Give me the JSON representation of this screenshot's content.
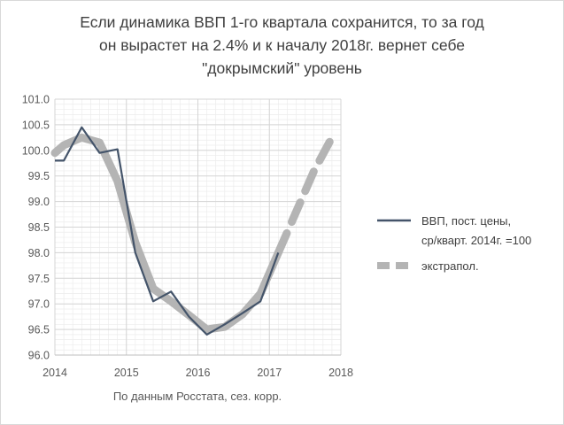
{
  "chart_data": {
    "type": "line",
    "title_lines": [
      "Если динамика ВВП 1-го квартала сохранится, то за год",
      "он вырастет на 2.4% и к началу 2018г. вернет себе",
      "\"докрымский\" уровень"
    ],
    "xlabel": "По данным Росстата, сез. корр.",
    "ylabel": "",
    "xlim": [
      2014,
      2018
    ],
    "ylim": [
      96.0,
      101.0
    ],
    "xticks": [
      "2014",
      "2015",
      "2016",
      "2017",
      "2018"
    ],
    "yticks": [
      "96.0",
      "96.5",
      "97.0",
      "97.5",
      "98.0",
      "98.5",
      "99.0",
      "99.5",
      "100.0",
      "100.5",
      "101.0"
    ],
    "grid": true,
    "legend_position": "right",
    "series": [
      {
        "name": "ВВП, пост. цены, ср/кварт. 2014г. =100",
        "name_lines": [
          "ВВП, пост. цены,",
          "ср/кварт. 2014г. =100"
        ],
        "color": "#44546a",
        "style": "solid",
        "x": [
          2014.0,
          2014.125,
          2014.375,
          2014.625,
          2014.875,
          2015.125,
          2015.375,
          2015.625,
          2015.875,
          2016.125,
          2016.375,
          2016.625,
          2016.875,
          2017.125
        ],
        "values": [
          99.8,
          99.8,
          100.45,
          99.95,
          100.02,
          98.0,
          97.05,
          97.24,
          96.75,
          96.4,
          96.6,
          96.82,
          97.05,
          98.0
        ]
      },
      {
        "name": "экстрапол.",
        "color": "#b4b4b4",
        "style": "dashed",
        "x": [
          2014.0,
          2014.125,
          2014.375,
          2014.625,
          2014.875,
          2015.125,
          2015.375,
          2015.625,
          2015.875,
          2016.125,
          2016.375,
          2016.625,
          2016.875,
          2017.125,
          2017.375,
          2017.625,
          2017.875
        ],
        "values": [
          99.95,
          100.1,
          100.25,
          100.15,
          99.4,
          98.2,
          97.3,
          97.05,
          96.78,
          96.5,
          96.55,
          96.8,
          97.2,
          98.0,
          98.8,
          99.6,
          100.25
        ]
      }
    ]
  }
}
